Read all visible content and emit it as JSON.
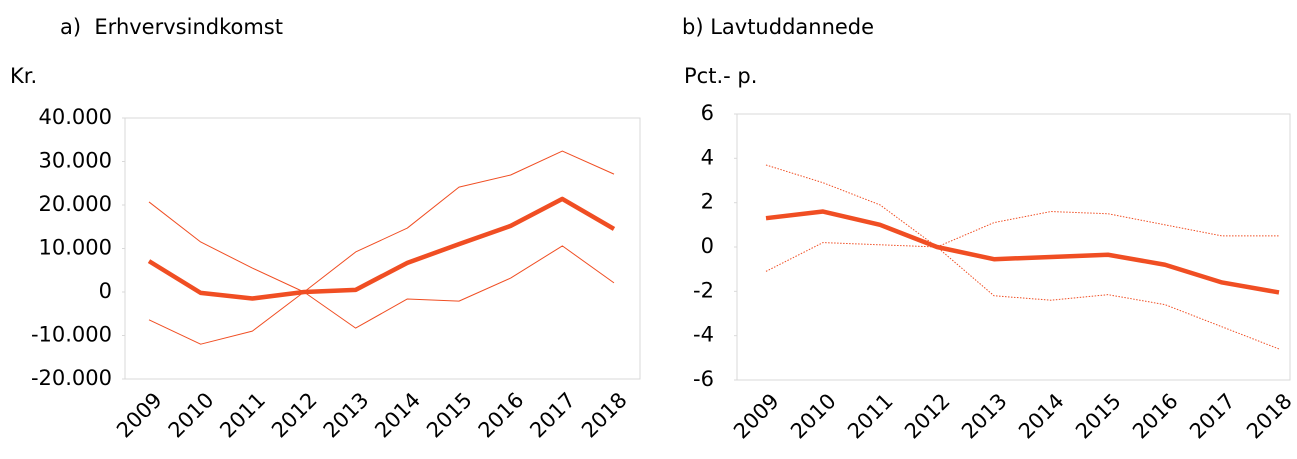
{
  "chart_data": [
    {
      "type": "line",
      "title": "a)  Erhvervsindkomst",
      "ylabel": "Kr.",
      "categories": [
        "2009",
        "2010",
        "2011",
        "2012",
        "2013",
        "2014",
        "2015",
        "2016",
        "2017",
        "2018"
      ],
      "series": [
        {
          "color": "#f04e23",
          "line_width": 4.5,
          "line_style": "solid",
          "values": [
            7100,
            -200,
            -1500,
            0,
            500,
            6700,
            11000,
            15200,
            21400,
            14500
          ]
        },
        {
          "color": "#f04e23",
          "line_width": 1,
          "line_style": "solid",
          "values": [
            20700,
            11500,
            5500,
            0,
            9200,
            14700,
            24100,
            26900,
            32400,
            27100
          ]
        },
        {
          "color": "#f04e23",
          "line_width": 1,
          "line_style": "solid",
          "values": [
            -6400,
            -12000,
            -9000,
            0,
            -8300,
            -1600,
            -2100,
            3200,
            10600,
            2100
          ]
        }
      ],
      "ylim": [
        -20000,
        40000
      ],
      "yticks": [
        {
          "value": -20000,
          "label": "-20.000"
        },
        {
          "value": -10000,
          "label": "-10.000"
        },
        0,
        {
          "value": 10000,
          "label": "10.000"
        },
        {
          "value": 20000,
          "label": "20.000"
        },
        {
          "value": 30000,
          "label": "30.000"
        },
        {
          "value": 40000,
          "label": "40.000"
        }
      ],
      "grid": false
    },
    {
      "type": "line",
      "title": "b) Lavtuddannede",
      "ylabel": "Pct.- p.",
      "categories": [
        "2009",
        "2010",
        "2011",
        "2012",
        "2013",
        "2014",
        "2015",
        "2016",
        "2017",
        "2018"
      ],
      "series": [
        {
          "color": "#f04e23",
          "line_width": 4.5,
          "line_style": "solid",
          "values": [
            1.3,
            1.6,
            1.0,
            0,
            -0.55,
            -0.45,
            -0.35,
            -0.8,
            -1.6,
            -2.05
          ]
        },
        {
          "color": "#f04e23",
          "line_width": 1,
          "line_style": "dotted",
          "values": [
            3.7,
            2.9,
            1.9,
            0,
            1.1,
            1.6,
            1.5,
            1.0,
            0.5,
            0.5
          ]
        },
        {
          "color": "#f04e23",
          "line_width": 1,
          "line_style": "dotted",
          "values": [
            -1.1,
            0.2,
            0.1,
            0,
            -2.2,
            -2.4,
            -2.15,
            -2.6,
            -3.6,
            -4.6
          ]
        }
      ],
      "ylim": [
        -6,
        6
      ],
      "yticks": [
        -6,
        -4,
        -2,
        0,
        2,
        4,
        6
      ],
      "grid": false
    }
  ]
}
